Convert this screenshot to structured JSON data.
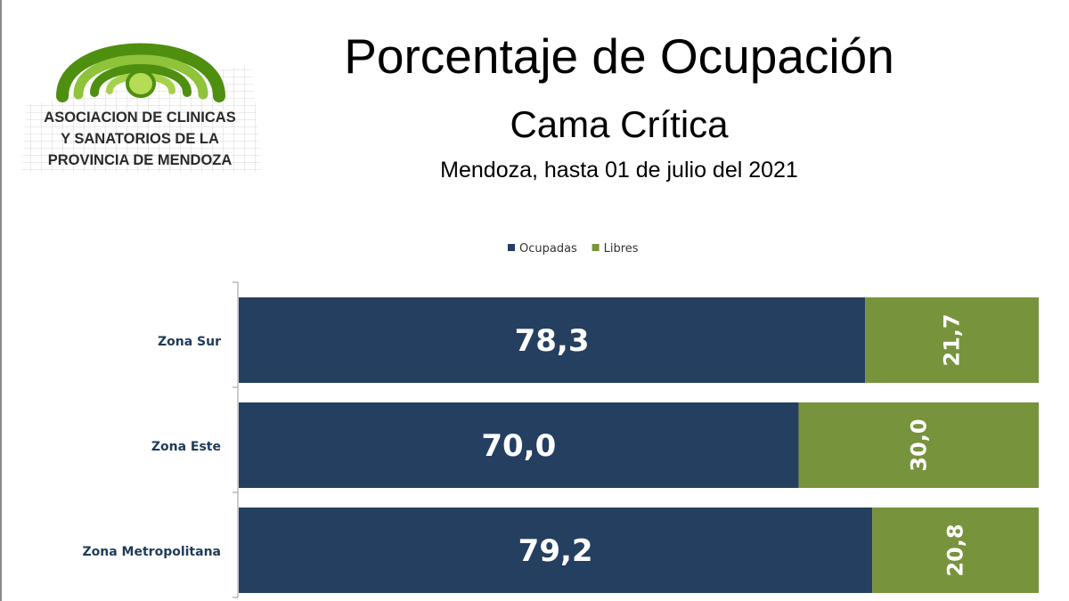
{
  "logo": {
    "lines": [
      "ASOCIACION DE CLINICAS",
      "Y SANATORIOS DE LA",
      "PROVINCIA DE MENDOZA"
    ]
  },
  "header": {
    "title": "Porcentaje de Ocupación",
    "subtitle": "Cama Crítica",
    "caption": "Mendoza, hasta 01 de julio del 2021"
  },
  "colors": {
    "ocupadas": "#243f60",
    "libres": "#77933c"
  },
  "chart_data": {
    "type": "bar",
    "orientation": "horizontal",
    "stacked": true,
    "categories": [
      "Zona Sur",
      "Zona Este",
      "Zona Metropolitana"
    ],
    "series": [
      {
        "name": "Ocupadas",
        "values": [
          78.3,
          70.0,
          79.2
        ],
        "labels": [
          "78,3",
          "70,0",
          "79,2"
        ]
      },
      {
        "name": "Libres",
        "values": [
          21.7,
          30.0,
          20.8
        ],
        "labels": [
          "21,7",
          "30,0",
          "20,8"
        ]
      }
    ],
    "xlim": [
      0,
      100
    ],
    "legend": "top",
    "grid": false
  }
}
